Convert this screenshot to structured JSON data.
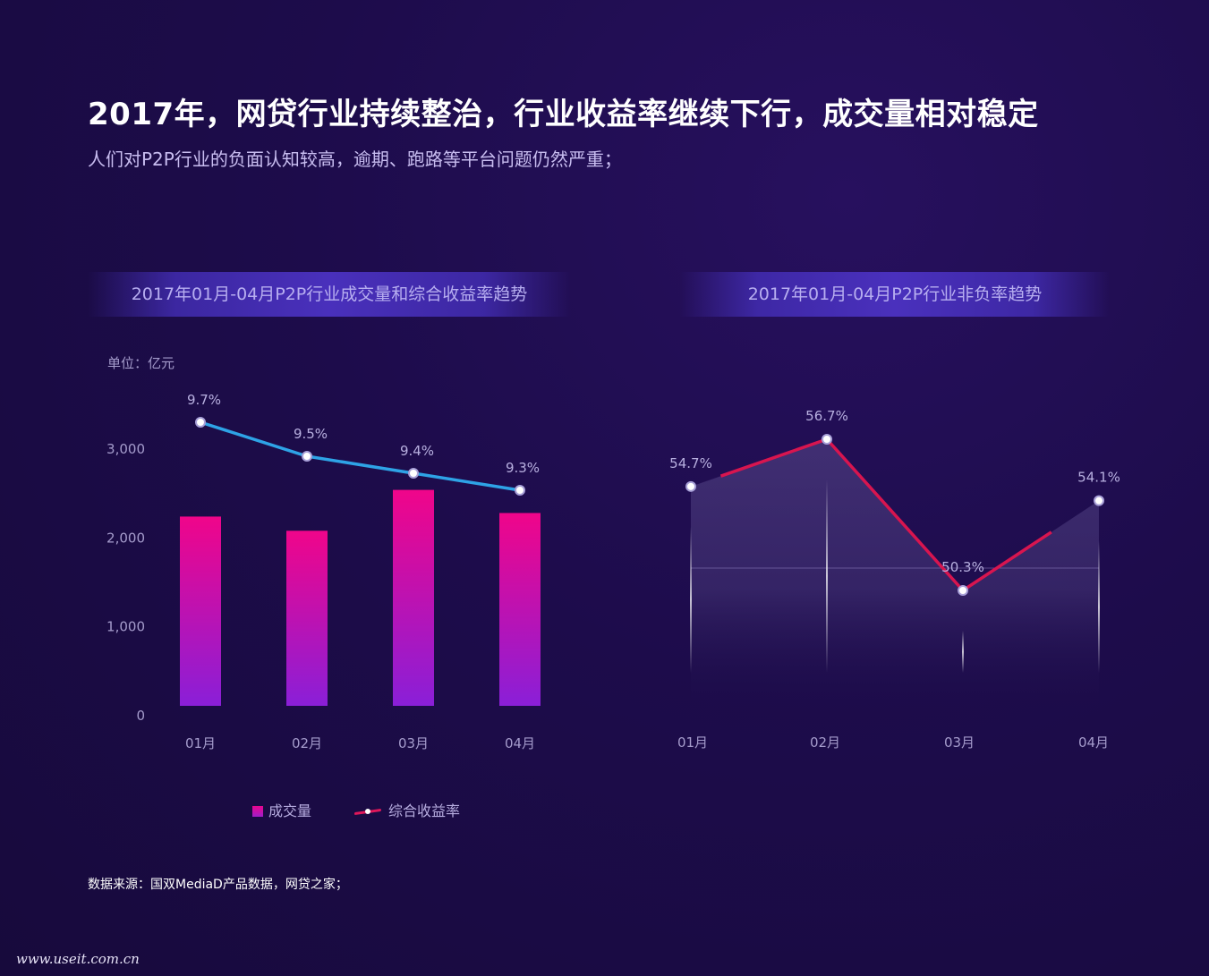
{
  "header": {
    "title": "2017年，网贷行业持续整治，行业收益率继续下行，成交量相对稳定",
    "subtitle": "人们对P2P行业的负面认知较高，逾期、跑路等平台问题仍然严重；"
  },
  "left_panel": {
    "title": "2017年01月-04月P2P行业成交量和综合收益率趋势",
    "unit_label": "单位：亿元"
  },
  "right_panel": {
    "title": "2017年01月-04月P2P行业非负率趋势"
  },
  "legend": {
    "volume_label": "成交量",
    "rate_label": "综合收益率"
  },
  "footer": {
    "source": "数据来源：国双MediaD产品数据，网贷之家；",
    "watermark": "www.useit.com.cn"
  },
  "colors": {
    "bar_top": "#f0058a",
    "bar_bottom": "#8a1fd8",
    "rate_line": "#2ea3e6",
    "nonneg_line": "#d8154f",
    "axis_text": "#a59ccc",
    "label_text": "#b8b0e0"
  },
  "chart_data": [
    {
      "type": "bar",
      "categories": [
        "01月",
        "02月",
        "03月",
        "04月"
      ],
      "yticks": [
        "0",
        "1,000",
        "2,000",
        "3,000"
      ],
      "ylim": [
        0,
        3000
      ],
      "series": [
        {
          "name": "成交量",
          "type": "bar",
          "values": [
            2130,
            1970,
            2430,
            2170
          ]
        },
        {
          "name": "综合收益率",
          "type": "line",
          "values": [
            9.7,
            9.5,
            9.4,
            9.3
          ],
          "labels": [
            "9.7%",
            "9.5%",
            "9.4%",
            "9.3%"
          ]
        }
      ]
    },
    {
      "type": "area",
      "categories": [
        "01月",
        "02月",
        "03月",
        "04月"
      ],
      "series": [
        {
          "values": [
            54.7,
            56.7,
            50.3,
            54.1
          ],
          "labels": [
            "54.7%",
            "56.7%",
            "50.3%",
            "54.1%"
          ]
        }
      ]
    }
  ]
}
